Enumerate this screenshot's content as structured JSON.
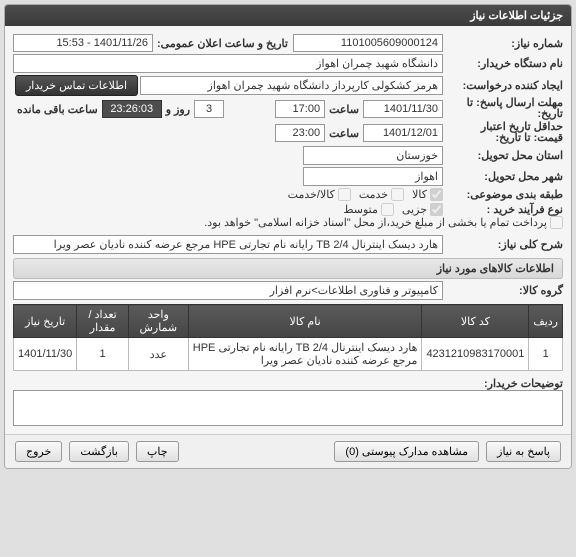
{
  "header": {
    "title": "جزئیات اطلاعات نیاز"
  },
  "fields": {
    "need_number_label": "شماره نیاز:",
    "need_number": "1101005609000124",
    "announce_time_label": "تاریخ و ساعت اعلان عمومی:",
    "announce_time": "1401/11/26 - 15:53",
    "buyer_label": "نام دستگاه خریدار:",
    "buyer": "دانشگاه شهید چمران اهواز",
    "creator_label": "ایجاد کننده درخواست:",
    "creator": "هرمز کشکولی کارپرداز دانشگاه شهید چمران اهواز",
    "contact_btn": "اطلاعات تماس خریدار",
    "deadline_label": "مهلت ارسال پاسخ:",
    "ta_label": "تا",
    "tarikh_label": "تاریخ:",
    "deadline_date": "1401/11/30",
    "time_label": "ساعت",
    "deadline_time": "17:00",
    "day_count": "3",
    "day_label": "روز و",
    "remaining_time": "23:26:03",
    "remaining_label": "ساعت باقی مانده",
    "valid_from_label": "حداقل تاریخ اعتبار",
    "valid_to_label": "قیمت: تا تاریخ:",
    "valid_date": "1401/12/01",
    "valid_time": "23:00",
    "province_label": "استان محل تحویل:",
    "province": "خوزستان",
    "city_label": "شهر محل تحویل:",
    "city": "اهواز",
    "classify_label": "طبقه بندی موضوعی:",
    "opt_kala": "کالا",
    "opt_khadamat": "خدمت",
    "opt_kalakhdmat": "کالا/خدمت",
    "process_label": "نوع فرآیند خرید :",
    "opt_jozei": "جزیی",
    "opt_motavaset": "متوسط",
    "payment_note": "پرداخت تمام یا بخشی از مبلغ خرید،از محل \"اسناد خزانه اسلامی\" خواهد بود.",
    "desc_label": "شرح کلی نیاز:",
    "desc": "هارد دیسک اینترنال TB 2/4 رایانه نام تجارتی HPE مرجع عرضه کننده نادیان عصر ویرا",
    "items_header": "اطلاعات کالاهای مورد نیاز",
    "group_label": "گروه کالا:",
    "group": "کامپیوتر و فناوری اطلاعات>نرم افزار",
    "explain_label": "توضيحات خریدار:"
  },
  "table": {
    "cols": [
      "ردیف",
      "کد کالا",
      "نام کالا",
      "واحد شمارش",
      "تعداد / مقدار",
      "تاریخ نیاز"
    ],
    "rows": [
      [
        "1",
        "4231210983170001",
        "هارد دیسک اینترنال TB 2/4 رایانه نام تجارتی HPE مرجع عرضه کننده نادیان عصر ویرا",
        "عدد",
        "1",
        "1401/11/30"
      ]
    ]
  },
  "footer": {
    "respond": "پاسخ به نیاز",
    "attachments": "مشاهده مدارک پیوستی (0)",
    "print": "چاپ",
    "back": "بازگشت",
    "exit": "خروج"
  }
}
